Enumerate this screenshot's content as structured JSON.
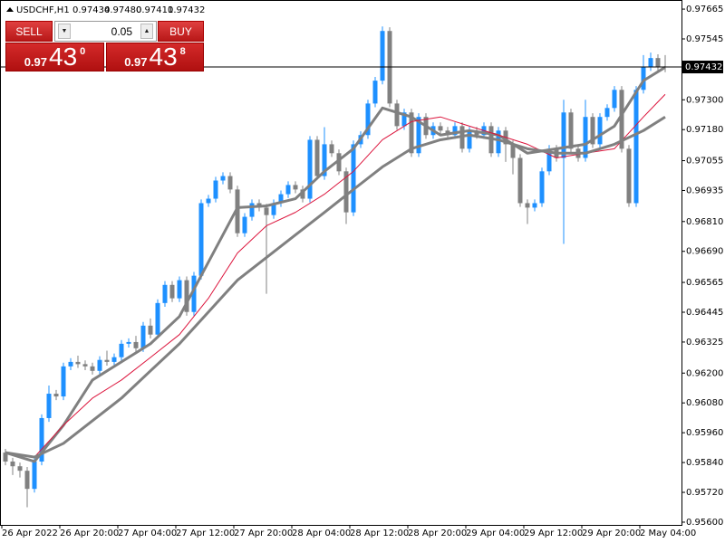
{
  "chart_data": {
    "type": "candlestick",
    "info": {
      "symbol": "USDCHF,H1",
      "ohlc": [
        "0.97434",
        "0.97480",
        "0.97411",
        "0.97432"
      ]
    },
    "categories": [
      "26 Apr 2022",
      null,
      null,
      null,
      null,
      null,
      null,
      null,
      "26 Apr 20:00",
      null,
      null,
      null,
      null,
      null,
      null,
      null,
      "27 Apr 04:00",
      null,
      null,
      null,
      null,
      null,
      null,
      null,
      "27 Apr 12:00",
      null,
      null,
      null,
      null,
      null,
      null,
      null,
      "27 Apr 20:00",
      null,
      null,
      null,
      null,
      null,
      null,
      null,
      "28 Apr 04:00",
      null,
      null,
      null,
      null,
      null,
      null,
      null,
      "28 Apr 12:00",
      null,
      null,
      null,
      null,
      null,
      null,
      null,
      "28 Apr 20:00",
      null,
      null,
      null,
      null,
      null,
      null,
      null,
      "29 Apr 04:00",
      null,
      null,
      null,
      null,
      null,
      null,
      null,
      "29 Apr 12:00",
      null,
      null,
      null,
      null,
      null,
      null,
      null,
      "29 Apr 20:00",
      null,
      null,
      null,
      null,
      null,
      null,
      null,
      "2 May 04:00",
      null,
      null,
      null
    ],
    "open": [
      0.9588,
      0.95844,
      0.95825,
      0.95807,
      0.95734,
      0.95844,
      0.96019,
      0.96117,
      0.96106,
      0.96227,
      0.96245,
      0.96236,
      0.96227,
      0.96209,
      0.96253,
      0.96245,
      0.96264,
      0.96318,
      0.96325,
      0.963,
      0.96391,
      0.96355,
      0.96482,
      0.96555,
      0.96501,
      0.96574,
      0.96446,
      0.96592,
      0.96884,
      0.96902,
      0.96975,
      0.96993,
      0.96939,
      0.96763,
      0.96829,
      0.96884,
      0.96866,
      0.96836,
      0.96884,
      0.9692,
      0.96957,
      0.96939,
      0.96902,
      0.97139,
      0.96993,
      0.97121,
      0.97085,
      0.97012,
      0.96847,
      0.97121,
      0.97158,
      0.97285,
      0.97377,
      0.97577,
      0.97285,
      0.97194,
      0.97249,
      0.97085,
      0.97231,
      0.97158,
      0.97194,
      0.97176,
      0.97158,
      0.97194,
      0.97103,
      0.97176,
      0.97158,
      0.97194,
      0.97085,
      0.97176,
      0.97121,
      0.97066,
      0.96884,
      0.96866,
      0.96884,
      0.97012,
      0.97103,
      0.97066,
      0.97249,
      0.97103,
      0.97066,
      0.97231,
      0.97121,
      0.97231,
      0.97267,
      0.9734,
      0.97103,
      0.96884,
      0.9734,
      0.97431,
      0.97468,
      0.97434
    ],
    "high": [
      0.95895,
      0.95859,
      0.9584,
      0.95822,
      0.95859,
      0.96034,
      0.9615,
      0.96132,
      0.96242,
      0.9626,
      0.9627,
      0.96251,
      0.96242,
      0.96268,
      0.9629,
      0.96279,
      0.96333,
      0.9634,
      0.9635,
      0.96406,
      0.9642,
      0.96497,
      0.9657,
      0.9657,
      0.96589,
      0.96589,
      0.96607,
      0.96899,
      0.96917,
      0.9699,
      0.97008,
      0.97008,
      0.96954,
      0.96844,
      0.96899,
      0.96899,
      0.96881,
      0.96899,
      0.96935,
      0.96972,
      0.96972,
      0.96954,
      0.97154,
      0.97154,
      0.9719,
      0.97136,
      0.971,
      0.97027,
      0.97136,
      0.97173,
      0.973,
      0.97392,
      0.97595,
      0.97592,
      0.973,
      0.97264,
      0.97264,
      0.97246,
      0.97246,
      0.97209,
      0.97209,
      0.97191,
      0.97209,
      0.97209,
      0.97191,
      0.97191,
      0.97209,
      0.97209,
      0.97191,
      0.97191,
      0.97136,
      0.97081,
      0.96899,
      0.96899,
      0.97027,
      0.97118,
      0.97118,
      0.973,
      0.97264,
      0.97118,
      0.973,
      0.97246,
      0.97246,
      0.97282,
      0.97355,
      0.97355,
      0.97118,
      0.97355,
      0.9748,
      0.9749,
      0.97483,
      0.9748
    ],
    "low": [
      0.95829,
      0.9579,
      0.9578,
      0.9566,
      0.95719,
      0.95829,
      0.96004,
      0.96091,
      0.96091,
      0.96212,
      0.96221,
      0.96212,
      0.96194,
      0.96194,
      0.9623,
      0.9623,
      0.96249,
      0.96303,
      0.96285,
      0.96285,
      0.9634,
      0.9634,
      0.96467,
      0.96486,
      0.96486,
      0.96431,
      0.96431,
      0.96577,
      0.96869,
      0.96887,
      0.9696,
      0.96924,
      0.96748,
      0.96748,
      0.96814,
      0.96851,
      0.96519,
      0.96821,
      0.96869,
      0.96905,
      0.96924,
      0.96887,
      0.96887,
      0.96978,
      0.96978,
      0.9707,
      0.96997,
      0.968,
      0.96832,
      0.97106,
      0.97143,
      0.9727,
      0.97362,
      0.9727,
      0.97179,
      0.97179,
      0.9707,
      0.9707,
      0.97143,
      0.97143,
      0.97161,
      0.97143,
      0.97143,
      0.97088,
      0.97088,
      0.97143,
      0.97143,
      0.9707,
      0.9707,
      0.9705,
      0.97,
      0.96869,
      0.968,
      0.96851,
      0.96869,
      0.96997,
      0.97051,
      0.9672,
      0.97088,
      0.97051,
      0.97051,
      0.97106,
      0.97106,
      0.97216,
      0.97252,
      0.97088,
      0.96869,
      0.96869,
      0.97325,
      0.97416,
      0.97416,
      0.97411
    ],
    "close": [
      0.95844,
      0.95825,
      0.95807,
      0.95734,
      0.95844,
      0.96019,
      0.96117,
      0.96106,
      0.96227,
      0.96245,
      0.96236,
      0.96227,
      0.96209,
      0.96253,
      0.96245,
      0.96264,
      0.96318,
      0.96325,
      0.963,
      0.96391,
      0.96355,
      0.96482,
      0.96555,
      0.96501,
      0.96574,
      0.96446,
      0.96592,
      0.96884,
      0.96902,
      0.96975,
      0.96993,
      0.96939,
      0.96763,
      0.96829,
      0.96884,
      0.96866,
      0.96836,
      0.96884,
      0.9692,
      0.96957,
      0.96939,
      0.96902,
      0.97139,
      0.96993,
      0.97121,
      0.97085,
      0.97012,
      0.96847,
      0.97121,
      0.97158,
      0.97285,
      0.97377,
      0.97577,
      0.97285,
      0.97194,
      0.97249,
      0.97085,
      0.97231,
      0.97158,
      0.97194,
      0.97176,
      0.97158,
      0.97194,
      0.97103,
      0.97176,
      0.97158,
      0.97194,
      0.97085,
      0.97176,
      0.97121,
      0.97066,
      0.96884,
      0.96866,
      0.96884,
      0.97012,
      0.97103,
      0.97066,
      0.97249,
      0.97103,
      0.97066,
      0.97231,
      0.97121,
      0.97231,
      0.97267,
      0.9734,
      0.97103,
      0.96884,
      0.9734,
      0.97431,
      0.97468,
      0.97431,
      0.97432
    ],
    "up_color": "#1e90ff",
    "down_color": "#808080",
    "moving_averages": [
      {
        "color": "#808080",
        "width": 3,
        "x": [
          0,
          4,
          8,
          12,
          16,
          20,
          24,
          28,
          32,
          36,
          40,
          44,
          48,
          52,
          56,
          60,
          64,
          68,
          72,
          76,
          80,
          84,
          88,
          91
        ],
        "values": [
          0.9588,
          0.95844,
          0.9599,
          0.96172,
          0.96245,
          0.96318,
          0.96428,
          0.96647,
          0.96866,
          0.96873,
          0.96902,
          0.97012,
          0.97103,
          0.97267,
          0.97231,
          0.97158,
          0.97176,
          0.97158,
          0.97085,
          0.97103,
          0.97121,
          0.97194,
          0.97377,
          0.97431
        ]
      },
      {
        "color": "#dc143c",
        "width": 1,
        "x": [
          0,
          4,
          8,
          12,
          16,
          20,
          24,
          28,
          32,
          36,
          40,
          44,
          48,
          52,
          56,
          60,
          64,
          68,
          72,
          76,
          80,
          84,
          88,
          91
        ],
        "values": [
          null,
          0.95862,
          0.9599,
          0.96099,
          0.96172,
          0.96263,
          0.96355,
          0.96501,
          0.96683,
          0.96793,
          0.96847,
          0.9692,
          0.97012,
          0.97139,
          0.97212,
          0.97231,
          0.97194,
          0.97158,
          0.97121,
          0.97066,
          0.97085,
          0.97103,
          0.97231,
          0.97322
        ]
      },
      {
        "color": "#808080",
        "width": 3,
        "x": [
          0,
          4,
          8,
          12,
          16,
          20,
          24,
          28,
          32,
          36,
          40,
          44,
          48,
          52,
          56,
          60,
          64,
          68,
          72,
          76,
          80,
          84,
          88,
          91
        ],
        "values": [
          0.9588,
          0.95862,
          0.95917,
          0.96008,
          0.96099,
          0.96209,
          0.96318,
          0.96446,
          0.96574,
          0.96665,
          0.96756,
          0.96847,
          0.96939,
          0.9703,
          0.97103,
          0.97139,
          0.97158,
          0.97139,
          0.97103,
          0.97085,
          0.97085,
          0.97121,
          0.97176,
          0.97231
        ]
      }
    ],
    "ylim": [
      0.95589,
      0.97698
    ],
    "yticks": [
      0.97665,
      0.97545,
      {
        "value": 0.973,
        "label": "0.97300"
      },
      {
        "value": 0.9718,
        "label": "0.97180"
      },
      0.97055,
      0.96935,
      {
        "value": 0.9681,
        "label": "0.96810"
      },
      {
        "value": 0.9669,
        "label": "0.96690"
      },
      0.96565,
      0.96445,
      0.96325,
      {
        "value": 0.962,
        "label": "0.96200"
      },
      {
        "value": 0.9608,
        "label": "0.96080"
      },
      {
        "value": 0.9596,
        "label": "0.95960"
      },
      {
        "value": 0.9584,
        "label": "0.95840"
      },
      {
        "value": 0.9572,
        "label": "0.95720"
      },
      {
        "value": 0.956,
        "label": "0.95600"
      }
    ],
    "price_line": {
      "value": 0.97432,
      "label": "0.97432"
    },
    "grid": false
  },
  "trade_panel": {
    "sell": "SELL",
    "buy": "BUY",
    "lot": "0.05",
    "sell_price": {
      "prefix": "0.97",
      "main": "43",
      "sup": "0"
    },
    "buy_price": {
      "prefix": "0.97",
      "main": "43",
      "sup": "8"
    }
  }
}
